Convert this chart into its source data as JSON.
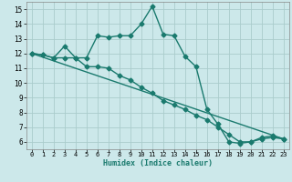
{
  "xlabel": "Humidex (Indice chaleur)",
  "bg_color": "#cce8ea",
  "grid_color": "#aacccc",
  "line_color": "#1a7a6e",
  "markersize": 2.5,
  "linewidth": 1.0,
  "xlim": [
    -0.5,
    23.5
  ],
  "ylim": [
    5.5,
    15.5
  ],
  "xticks": [
    0,
    1,
    2,
    3,
    4,
    5,
    6,
    7,
    8,
    9,
    10,
    11,
    12,
    13,
    14,
    15,
    16,
    17,
    18,
    19,
    20,
    21,
    22,
    23
  ],
  "yticks": [
    6,
    7,
    8,
    9,
    10,
    11,
    12,
    13,
    14,
    15
  ],
  "series1_x": [
    0,
    1,
    2,
    3,
    4,
    5,
    6,
    7,
    8,
    9,
    10,
    11,
    12,
    13,
    14,
    15,
    16,
    17,
    18,
    19,
    20,
    21,
    22,
    23
  ],
  "series1_y": [
    12.0,
    11.9,
    11.7,
    12.5,
    11.7,
    11.7,
    13.2,
    13.1,
    13.2,
    13.2,
    14.0,
    15.2,
    13.3,
    13.2,
    11.8,
    11.1,
    8.2,
    7.2,
    6.0,
    5.9,
    6.0,
    6.3,
    6.4,
    6.2
  ],
  "series2_x": [
    0,
    1,
    2,
    3,
    4,
    5,
    6,
    7,
    8,
    9,
    10,
    11,
    12,
    13,
    14,
    15,
    16,
    17,
    18,
    19,
    20,
    21,
    22,
    23
  ],
  "series2_y": [
    12.0,
    11.9,
    11.7,
    11.7,
    11.7,
    11.1,
    11.1,
    11.0,
    10.5,
    10.2,
    9.7,
    9.3,
    8.8,
    8.5,
    8.2,
    7.8,
    7.5,
    7.0,
    6.5,
    6.0,
    6.0,
    6.2,
    6.3,
    6.2
  ],
  "series3_x": [
    0,
    23
  ],
  "series3_y": [
    12.0,
    6.2
  ]
}
